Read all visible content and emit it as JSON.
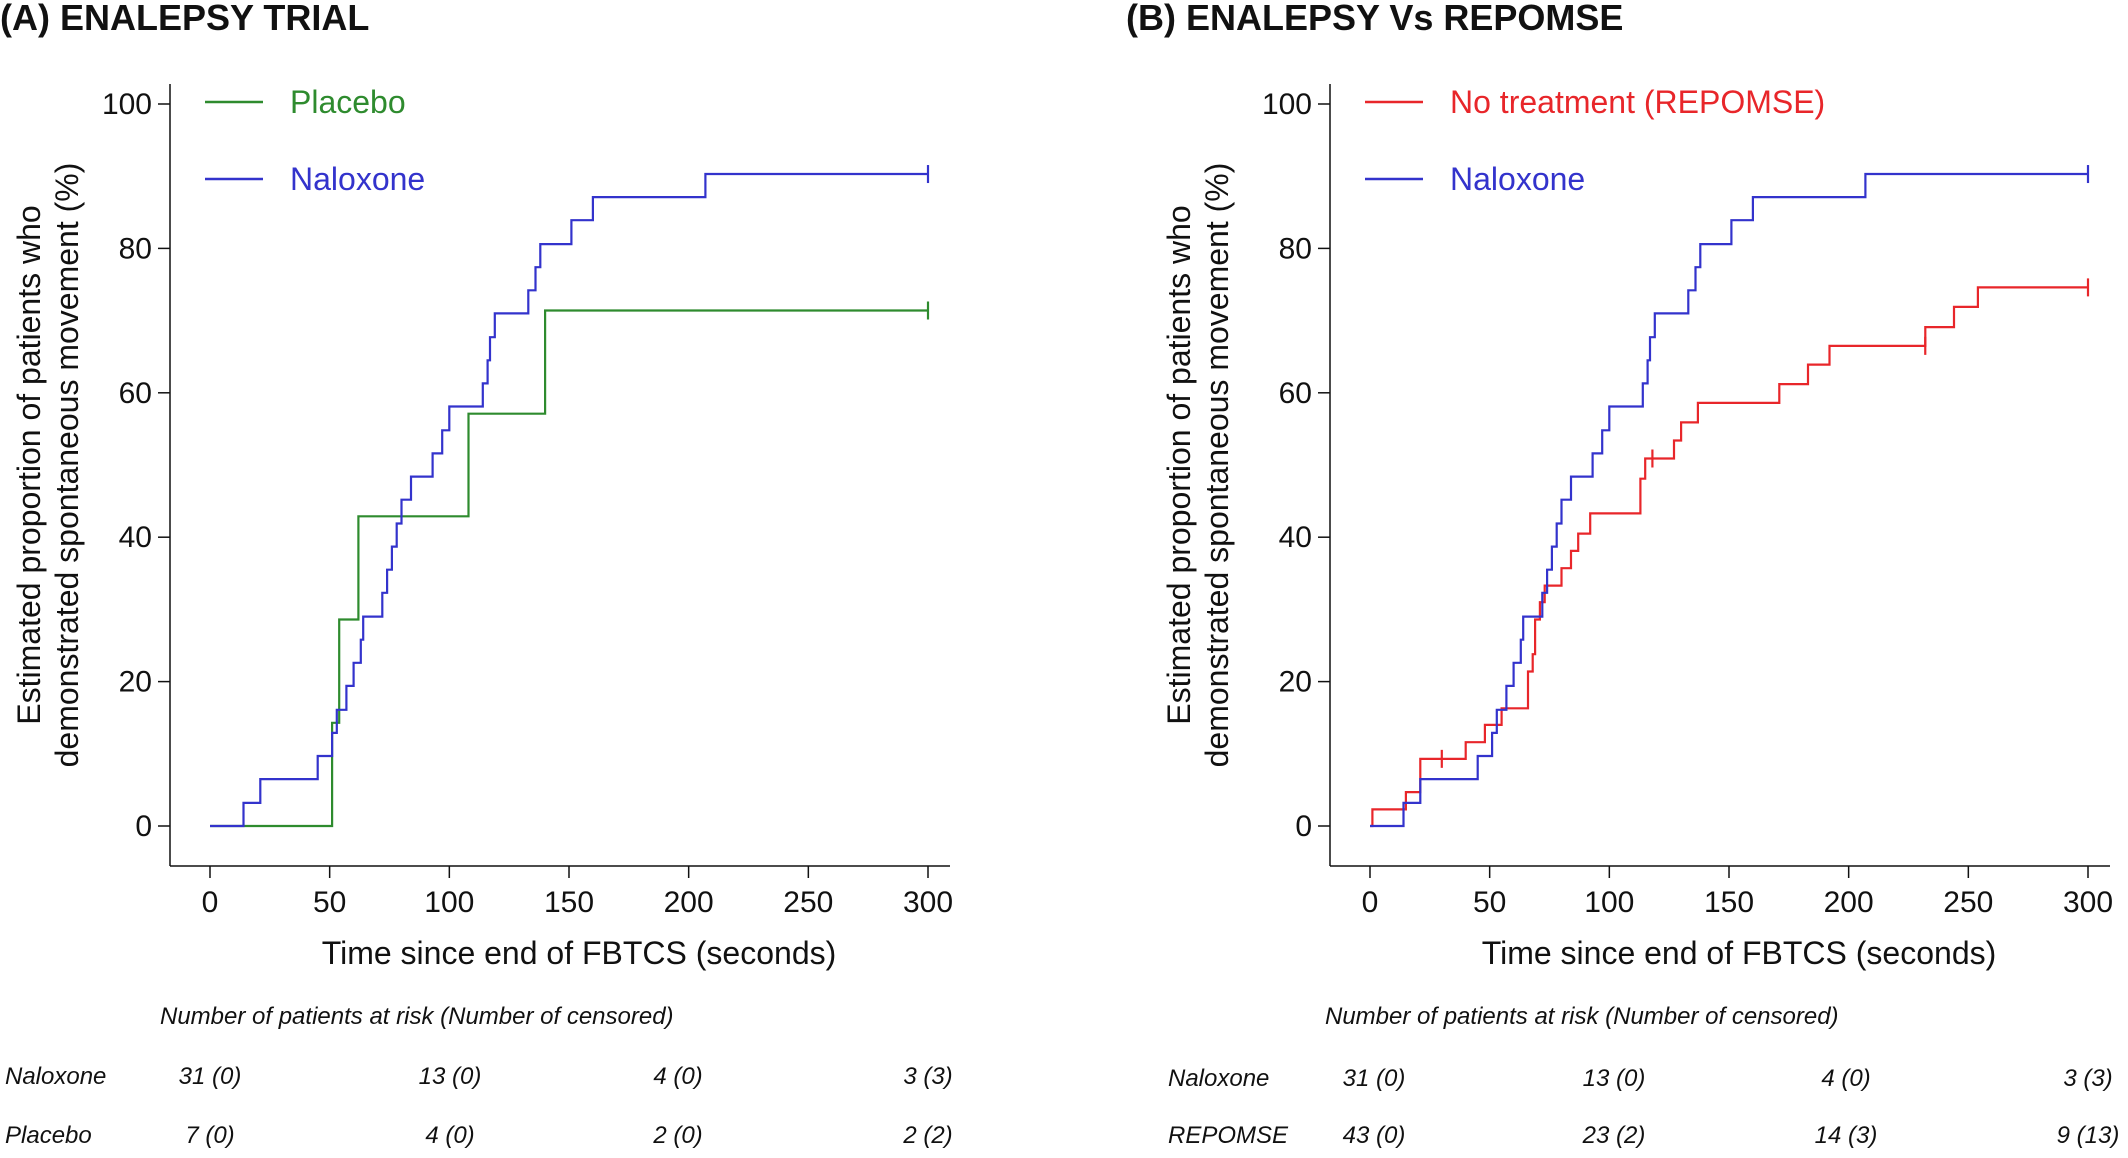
{
  "chart_data": [
    {
      "panel_title": "(A)  ENALEPSY TRIAL",
      "type": "line",
      "step": true,
      "xlabel": "Time since end of FBTCS (seconds)",
      "ylabel_lines": [
        "Estimated proportion of patients who",
        "demonstrated spontaneous movement  (%)"
      ],
      "xlim": [
        0,
        300
      ],
      "ylim": [
        0,
        100
      ],
      "xticks": [
        0,
        50,
        100,
        150,
        200,
        250,
        300
      ],
      "yticks": [
        0,
        20,
        40,
        60,
        80,
        100
      ],
      "grid": false,
      "legend_position": "top-left",
      "series": [
        {
          "name": "Placebo",
          "color": "#2e8b2e",
          "points": [
            [
              0,
              0
            ],
            [
              51,
              0
            ],
            [
              51,
              14.3
            ],
            [
              54,
              14.3
            ],
            [
              54,
              28.6
            ],
            [
              62,
              28.6
            ],
            [
              62,
              42.9
            ],
            [
              108,
              42.9
            ],
            [
              108,
              57.1
            ],
            [
              140,
              57.1
            ],
            [
              140,
              71.4
            ],
            [
              300,
              71.4
            ]
          ],
          "censored": [
            [
              300,
              71.4
            ]
          ]
        },
        {
          "name": "Naloxone",
          "color": "#3333cc",
          "points": [
            [
              0,
              0
            ],
            [
              14,
              0
            ],
            [
              14,
              3.2
            ],
            [
              21,
              3.2
            ],
            [
              21,
              6.5
            ],
            [
              45,
              6.5
            ],
            [
              45,
              9.7
            ],
            [
              51,
              9.7
            ],
            [
              51,
              12.9
            ],
            [
              53,
              12.9
            ],
            [
              53,
              16.1
            ],
            [
              57,
              16.1
            ],
            [
              57,
              19.4
            ],
            [
              60,
              19.4
            ],
            [
              60,
              22.6
            ],
            [
              63,
              22.6
            ],
            [
              63,
              25.8
            ],
            [
              64,
              25.8
            ],
            [
              64,
              29.0
            ],
            [
              72,
              29.0
            ],
            [
              72,
              32.3
            ],
            [
              74,
              32.3
            ],
            [
              74,
              35.5
            ],
            [
              76,
              35.5
            ],
            [
              76,
              38.7
            ],
            [
              78,
              38.7
            ],
            [
              78,
              41.9
            ],
            [
              80,
              41.9
            ],
            [
              80,
              45.2
            ],
            [
              84,
              45.2
            ],
            [
              84,
              48.4
            ],
            [
              93,
              48.4
            ],
            [
              93,
              51.6
            ],
            [
              97,
              51.6
            ],
            [
              97,
              54.8
            ],
            [
              100,
              54.8
            ],
            [
              100,
              58.1
            ],
            [
              114,
              58.1
            ],
            [
              114,
              61.3
            ],
            [
              116,
              61.3
            ],
            [
              116,
              64.5
            ],
            [
              117,
              64.5
            ],
            [
              117,
              67.7
            ],
            [
              119,
              67.7
            ],
            [
              119,
              71.0
            ],
            [
              133,
              71.0
            ],
            [
              133,
              74.2
            ],
            [
              136,
              74.2
            ],
            [
              136,
              77.4
            ],
            [
              138,
              77.4
            ],
            [
              138,
              80.6
            ],
            [
              151,
              80.6
            ],
            [
              151,
              83.9
            ],
            [
              160,
              83.9
            ],
            [
              160,
              87.1
            ],
            [
              207,
              87.1
            ],
            [
              207,
              90.3
            ],
            [
              300,
              90.3
            ]
          ],
          "censored": [
            [
              300,
              90.3
            ]
          ]
        }
      ],
      "risk_table": {
        "header": "Number of patients at risk (Number of censored)",
        "time_points": [
          0,
          100,
          200,
          300
        ],
        "rows": [
          {
            "label": "Naloxone",
            "values": [
              "31 (0)",
              "13 (0)",
              "4 (0)",
              "3 (3)"
            ]
          },
          {
            "label": "Placebo",
            "values": [
              "7 (0)",
              "4 (0)",
              "2 (0)",
              "2 (2)"
            ]
          }
        ]
      }
    },
    {
      "panel_title": "(B)  ENALEPSY Vs REPOMSE",
      "type": "line",
      "step": true,
      "xlabel": "Time since end of FBTCS (seconds)",
      "ylabel_lines": [
        "Estimated proportion of patients who",
        "demonstrated spontaneous movement  (%)"
      ],
      "xlim": [
        0,
        300
      ],
      "ylim": [
        0,
        100
      ],
      "xticks": [
        0,
        50,
        100,
        150,
        200,
        250,
        300
      ],
      "yticks": [
        0,
        20,
        40,
        60,
        80,
        100
      ],
      "grid": false,
      "legend_position": "top-left",
      "series": [
        {
          "name": "No treatment (REPOMSE)",
          "color": "#e8262a",
          "points": [
            [
              0,
              0
            ],
            [
              1,
              0
            ],
            [
              1,
              2.3
            ],
            [
              15,
              2.3
            ],
            [
              15,
              4.7
            ],
            [
              21,
              4.7
            ],
            [
              21,
              9.3
            ],
            [
              40,
              9.3
            ],
            [
              40,
              11.6
            ],
            [
              48,
              11.6
            ],
            [
              48,
              14.0
            ],
            [
              55,
              14.0
            ],
            [
              55,
              16.3
            ],
            [
              66,
              16.3
            ],
            [
              66,
              21.4
            ],
            [
              68,
              21.4
            ],
            [
              68,
              23.8
            ],
            [
              69,
              23.8
            ],
            [
              69,
              28.6
            ],
            [
              71,
              28.6
            ],
            [
              71,
              31.0
            ],
            [
              73,
              31.0
            ],
            [
              73,
              33.3
            ],
            [
              80,
              33.3
            ],
            [
              80,
              35.7
            ],
            [
              84,
              35.7
            ],
            [
              84,
              38.1
            ],
            [
              87,
              38.1
            ],
            [
              87,
              40.5
            ],
            [
              92,
              40.5
            ],
            [
              92,
              43.3
            ],
            [
              113,
              43.3
            ],
            [
              113,
              48.1
            ],
            [
              115,
              48.1
            ],
            [
              115,
              50.9
            ],
            [
              127,
              50.9
            ],
            [
              127,
              53.4
            ],
            [
              130,
              53.4
            ],
            [
              130,
              55.9
            ],
            [
              137,
              55.9
            ],
            [
              137,
              58.6
            ],
            [
              171,
              58.6
            ],
            [
              171,
              61.2
            ],
            [
              183,
              61.2
            ],
            [
              183,
              63.9
            ],
            [
              192,
              63.9
            ],
            [
              192,
              66.5
            ],
            [
              232,
              66.5
            ],
            [
              232,
              69.1
            ],
            [
              244,
              69.1
            ],
            [
              244,
              71.9
            ],
            [
              254,
              71.9
            ],
            [
              254,
              74.6
            ],
            [
              300,
              74.6
            ]
          ],
          "censored": [
            [
              30,
              9.3
            ],
            [
              118,
              50.9
            ],
            [
              232,
              66.5
            ],
            [
              300,
              74.6
            ]
          ]
        },
        {
          "name": "Naloxone",
          "color": "#3333cc",
          "points": [
            [
              0,
              0
            ],
            [
              14,
              0
            ],
            [
              14,
              3.2
            ],
            [
              21,
              3.2
            ],
            [
              21,
              6.5
            ],
            [
              45,
              6.5
            ],
            [
              45,
              9.7
            ],
            [
              51,
              9.7
            ],
            [
              51,
              12.9
            ],
            [
              53,
              12.9
            ],
            [
              53,
              16.1
            ],
            [
              57,
              16.1
            ],
            [
              57,
              19.4
            ],
            [
              60,
              19.4
            ],
            [
              60,
              22.6
            ],
            [
              63,
              22.6
            ],
            [
              63,
              25.8
            ],
            [
              64,
              25.8
            ],
            [
              64,
              29.0
            ],
            [
              72,
              29.0
            ],
            [
              72,
              32.3
            ],
            [
              74,
              32.3
            ],
            [
              74,
              35.5
            ],
            [
              76,
              35.5
            ],
            [
              76,
              38.7
            ],
            [
              78,
              38.7
            ],
            [
              78,
              41.9
            ],
            [
              80,
              41.9
            ],
            [
              80,
              45.2
            ],
            [
              84,
              45.2
            ],
            [
              84,
              48.4
            ],
            [
              93,
              48.4
            ],
            [
              93,
              51.6
            ],
            [
              97,
              51.6
            ],
            [
              97,
              54.8
            ],
            [
              100,
              54.8
            ],
            [
              100,
              58.1
            ],
            [
              114,
              58.1
            ],
            [
              114,
              61.3
            ],
            [
              116,
              61.3
            ],
            [
              116,
              64.5
            ],
            [
              117,
              64.5
            ],
            [
              117,
              67.7
            ],
            [
              119,
              67.7
            ],
            [
              119,
              71.0
            ],
            [
              133,
              71.0
            ],
            [
              133,
              74.2
            ],
            [
              136,
              74.2
            ],
            [
              136,
              77.4
            ],
            [
              138,
              77.4
            ],
            [
              138,
              80.6
            ],
            [
              151,
              80.6
            ],
            [
              151,
              83.9
            ],
            [
              160,
              83.9
            ],
            [
              160,
              87.1
            ],
            [
              207,
              87.1
            ],
            [
              207,
              90.3
            ],
            [
              300,
              90.3
            ]
          ],
          "censored": [
            [
              300,
              90.3
            ]
          ]
        }
      ],
      "risk_table": {
        "header": "Number of patients at risk (Number of censored)",
        "time_points": [
          0,
          100,
          200,
          300
        ],
        "rows": [
          {
            "label": "Naloxone",
            "values": [
              "31 (0)",
              "13 (0)",
              "4 (0)",
              "3 (3)"
            ]
          },
          {
            "label": "REPOMSE",
            "values": [
              "43 (0)",
              "23 (2)",
              "14 (3)",
              "9 (13)"
            ]
          }
        ]
      }
    }
  ]
}
